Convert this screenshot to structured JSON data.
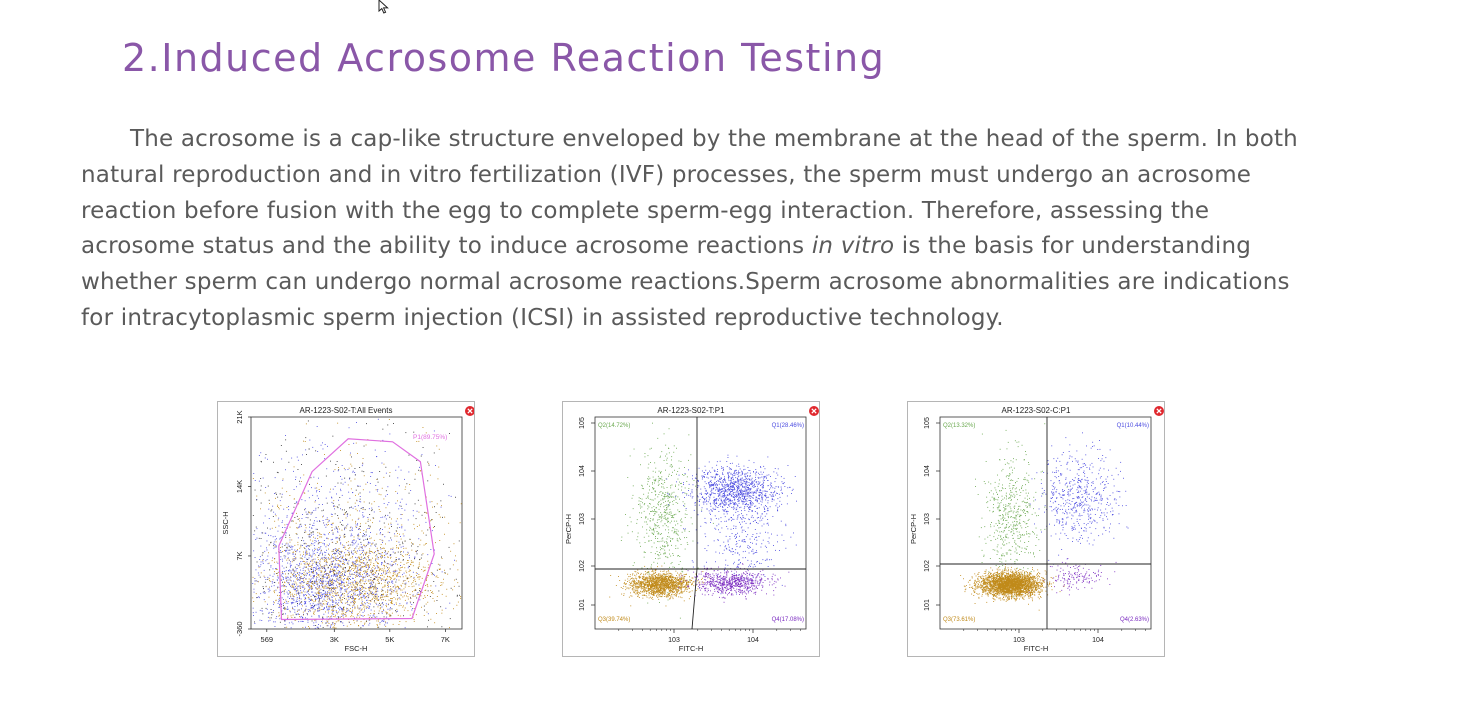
{
  "section": {
    "title": "2.Induced Acrosome Reaction Testing",
    "paragraph": {
      "line1": "The acrosome is a cap-like structure enveloped by the membrane at the head of the sperm. In both",
      "line2": "natural reproduction and in vitro fertilization (IVF) processes, the sperm must undergo an acrosome",
      "line3": "reaction before fusion with the egg to complete sperm-egg interaction. Therefore, assessing the",
      "line4_before": "acrosome status and the ability to induce acrosome reactions ",
      "line4_italic": "in vitro",
      "line4_after": " is the basis for understanding",
      "line5": "whether sperm can undergo normal acrosome reactions.Sperm acrosome abnormalities are indications",
      "line6": "for intracytoplasmic sperm injection (ICSI) in assisted reproductive technology."
    }
  },
  "colors": {
    "title": "#8a57a8",
    "text": "#5a5a5a",
    "gate": "#e070e0",
    "green": "#6aa84f",
    "blue": "#4a4ae0",
    "orange": "#c08a1a",
    "purple": "#7a2ac0",
    "close": "#e0282e"
  },
  "chart_data": [
    {
      "type": "scatter",
      "title": "AR-1223-S02-T:All Events",
      "xlabel": "FSC-H",
      "ylabel": "SSC-H",
      "x_ticks": [
        "569",
        "3K",
        "5K",
        "7K"
      ],
      "y_ticks": [
        "-360",
        "7K",
        "14K",
        "21K"
      ],
      "xlim": [
        0,
        7600
      ],
      "ylim": [
        -360,
        21000
      ],
      "gate": {
        "name": "P1(89.75%)",
        "vertices": [
          [
            1100,
            600
          ],
          [
            5800,
            700
          ],
          [
            6600,
            7200
          ],
          [
            6100,
            16500
          ],
          [
            5100,
            18500
          ],
          [
            3500,
            18800
          ],
          [
            2200,
            15500
          ],
          [
            1000,
            8000
          ]
        ]
      }
    },
    {
      "type": "scatter",
      "title": "AR-1223-S02-T:P1",
      "xlabel": "FITC-H",
      "ylabel": "PerCP-H",
      "log_scale": true,
      "x_ticks": [
        "10^3",
        "10^4"
      ],
      "y_ticks": [
        "10^1",
        "10^2",
        "10^3",
        "10^4",
        "10^5"
      ],
      "quadrants": [
        {
          "name": "Q1",
          "percent": 28.46,
          "label": "Q1(28.46%)"
        },
        {
          "name": "Q2",
          "percent": 14.72,
          "label": "Q2(14.72%)"
        },
        {
          "name": "Q3",
          "percent": 39.74,
          "label": "Q3(39.74%)"
        },
        {
          "name": "Q4",
          "percent": 17.08,
          "label": "Q4(17.08%)"
        }
      ]
    },
    {
      "type": "scatter",
      "title": "AR-1223-S02-C:P1",
      "xlabel": "FITC-H",
      "ylabel": "PerCP-H",
      "log_scale": true,
      "x_ticks": [
        "10^3",
        "10^4"
      ],
      "y_ticks": [
        "10^1",
        "10^2",
        "10^3",
        "10^4",
        "10^5"
      ],
      "quadrants": [
        {
          "name": "Q1",
          "percent": 10.44,
          "label": "Q1(10.44%)"
        },
        {
          "name": "Q2",
          "percent": 13.32,
          "label": "Q2(13.32%)"
        },
        {
          "name": "Q3",
          "percent": 73.61,
          "label": "Q3(73.61%)"
        },
        {
          "name": "Q4",
          "percent": 2.63,
          "label": "Q4(2.63%)"
        }
      ]
    }
  ]
}
